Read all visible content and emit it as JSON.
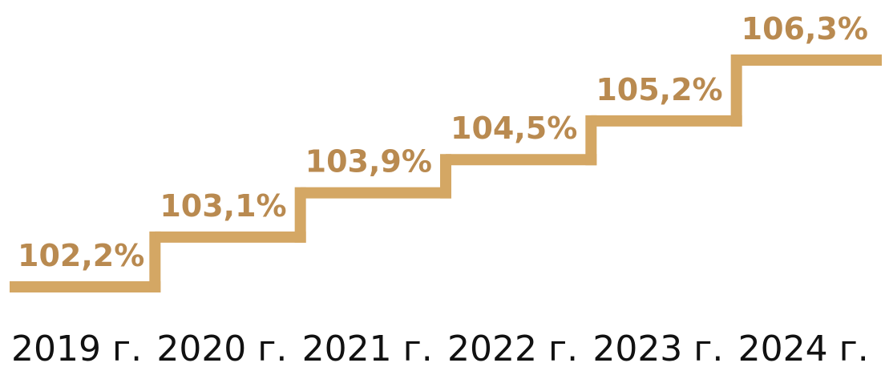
{
  "chart_data": {
    "type": "step",
    "categories": [
      "2019 г.",
      "2020 г.",
      "2021 г.",
      "2022 г.",
      "2023 г.",
      "2024 г."
    ],
    "values": [
      102.2,
      103.1,
      103.9,
      104.5,
      105.2,
      106.3
    ],
    "value_labels": [
      "102,2%",
      "103,1%",
      "103,9%",
      "104,5%",
      "105,2%",
      "106,3%"
    ],
    "color": "#d4a764"
  }
}
